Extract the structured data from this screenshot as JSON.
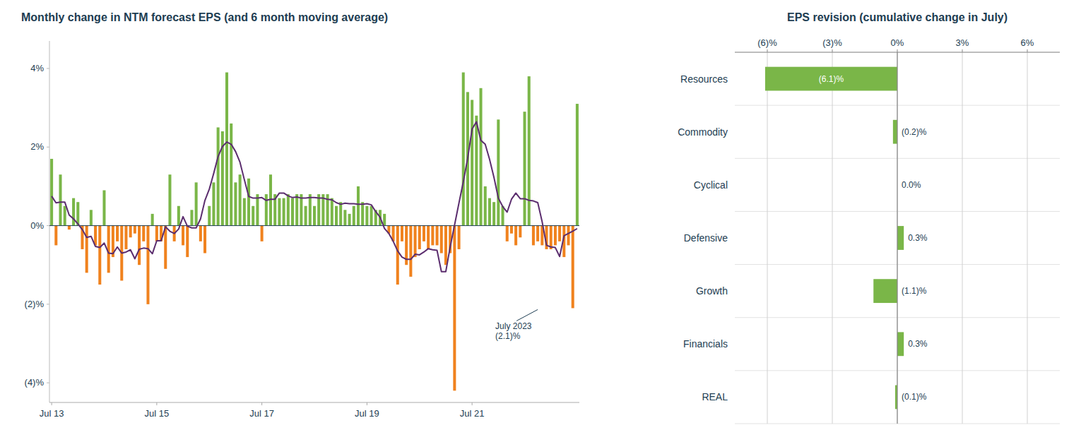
{
  "chart_data": [
    {
      "type": "bar",
      "title": "Monthly change in NTM forecast EPS (and 6 month moving average)",
      "categories": [
        "Jul 13",
        null,
        null,
        null,
        null,
        null,
        null,
        null,
        null,
        null,
        null,
        null,
        null,
        null,
        null,
        null,
        null,
        null,
        null,
        null,
        null,
        null,
        null,
        null,
        "Jul 15",
        null,
        null,
        null,
        null,
        null,
        null,
        null,
        null,
        null,
        null,
        null,
        null,
        null,
        null,
        null,
        null,
        null,
        null,
        null,
        null,
        null,
        null,
        null,
        "Jul 17",
        null,
        null,
        null,
        null,
        null,
        null,
        null,
        null,
        null,
        null,
        null,
        null,
        null,
        null,
        null,
        null,
        null,
        null,
        null,
        null,
        null,
        null,
        null,
        "Jul 19",
        null,
        null,
        null,
        null,
        null,
        null,
        null,
        null,
        null,
        null,
        null,
        null,
        null,
        null,
        null,
        null,
        null,
        null,
        null,
        null,
        null,
        null,
        null,
        "Jul 21",
        null,
        null,
        null,
        null,
        null,
        null,
        null,
        null,
        null,
        null,
        null,
        null,
        null,
        null,
        null,
        null,
        null,
        null,
        null,
        null,
        null,
        null,
        null,
        null
      ],
      "series": [
        {
          "type": "bar",
          "values": [
            1.7,
            -0.5,
            1.3,
            0.5,
            -0.1,
            0.7,
            0.6,
            -0.6,
            -1.2,
            0.4,
            -0.5,
            -1.5,
            0.9,
            -1.2,
            -0.8,
            -0.4,
            -1.4,
            -0.6,
            -0.3,
            -0.2,
            -1.0,
            -0.4,
            -2.0,
            0.3,
            -0.4,
            -0.4,
            -1.1,
            1.3,
            -0.4,
            0.5,
            -0.5,
            -0.8,
            0.4,
            1.1,
            -0.4,
            -0.7,
            0.5,
            1.1,
            2.5,
            2.4,
            3.9,
            2.6,
            1.1,
            1.3,
            0.7,
            1.2,
            0.5,
            0.8,
            -0.4,
            0.8,
            1.3,
            0.8,
            0.7,
            0.7,
            0.8,
            0.7,
            0.8,
            0.8,
            0.5,
            0.8,
            0.5,
            0.8,
            0.8,
            0.8,
            0.7,
            0.5,
            0.6,
            0.4,
            0.3,
            0.5,
            1.0,
            0.6,
            0.5,
            0.5,
            0.4,
            0.4,
            0.3,
            -0.2,
            -0.4,
            -1.5,
            -0.4,
            -1.0,
            -1.3,
            -0.8,
            -0.6,
            -0.4,
            -0.6,
            -0.5,
            -0.5,
            -0.7,
            -1.0,
            -0.7,
            -4.2,
            -0.6,
            3.9,
            3.4,
            3.2,
            2.8,
            3.5,
            1.0,
            0.7,
            0.6,
            2.7,
            0.5,
            -0.4,
            -0.2,
            -0.5,
            -0.3,
            2.9,
            3.8,
            -0.5,
            -0.4,
            -0.5,
            -0.6,
            -0.6,
            -0.5,
            -0.4,
            -0.8,
            -0.5,
            -2.1,
            3.1
          ],
          "colors": [
            "#7ab648",
            "#f0821e",
            "#7ab648",
            "#7ab648",
            "#f0821e",
            "#7ab648",
            "#7ab648",
            "#f0821e",
            "#f0821e",
            "#7ab648",
            "#f0821e",
            "#f0821e",
            "#7ab648",
            "#f0821e",
            "#f0821e",
            "#f0821e",
            "#f0821e",
            "#f0821e",
            "#f0821e",
            "#f0821e",
            "#f0821e",
            "#f0821e",
            "#f0821e",
            "#7ab648",
            "#f0821e",
            "#f0821e",
            "#f0821e",
            "#7ab648",
            "#f0821e",
            "#7ab648",
            "#f0821e",
            "#f0821e",
            "#7ab648",
            "#7ab648",
            "#f0821e",
            "#f0821e",
            "#7ab648",
            "#7ab648",
            "#7ab648",
            "#7ab648",
            "#7ab648",
            "#7ab648",
            "#7ab648",
            "#7ab648",
            "#7ab648",
            "#7ab648",
            "#7ab648",
            "#7ab648",
            "#f0821e",
            "#7ab648",
            "#7ab648",
            "#7ab648",
            "#7ab648",
            "#7ab648",
            "#7ab648",
            "#7ab648",
            "#7ab648",
            "#7ab648",
            "#7ab648",
            "#7ab648",
            "#7ab648",
            "#7ab648",
            "#7ab648",
            "#7ab648",
            "#7ab648",
            "#7ab648",
            "#7ab648",
            "#7ab648",
            "#7ab648",
            "#7ab648",
            "#7ab648",
            "#7ab648",
            "#7ab648",
            "#7ab648",
            "#7ab648",
            "#7ab648",
            "#7ab648",
            "#f0821e",
            "#f0821e",
            "#f0821e",
            "#f0821e",
            "#f0821e",
            "#f0821e",
            "#f0821e",
            "#f0821e",
            "#f0821e",
            "#f0821e",
            "#f0821e",
            "#f0821e",
            "#f0821e",
            "#f0821e",
            "#f0821e",
            "#f0821e",
            "#f0821e",
            "#7ab648",
            "#7ab648",
            "#7ab648",
            "#7ab648",
            "#7ab648",
            "#7ab648",
            "#7ab648",
            "#7ab648",
            "#7ab648",
            "#7ab648",
            "#f0821e",
            "#f0821e",
            "#f0821e",
            "#f0821e",
            "#7ab648",
            "#7ab648",
            "#f0821e",
            "#f0821e",
            "#f0821e",
            "#f0821e",
            "#f0821e",
            "#f0821e",
            "#f0821e",
            "#f0821e",
            "#f0821e",
            "#f0821e",
            "#7ab648"
          ]
        },
        {
          "type": "line",
          "color": "#5b2d6e",
          "values": [
            0.75,
            0.58,
            0.6,
            0.6,
            0.2714,
            0.1714,
            0.0429,
            -0.1,
            -0.3,
            -0.2714,
            -0.5286,
            -0.5571,
            -0.4429,
            -0.7,
            -0.7143,
            -0.5429,
            -0.7,
            -0.6714,
            -0.6143,
            -0.8429,
            -0.6,
            -0.5714,
            -0.5857,
            -0.7143,
            -0.3857,
            -0.3857,
            -0.0286,
            -0.1429,
            -0.2,
            -0.0857,
            0.2286,
            -0.0143,
            -0.0571,
            -0.0571,
            0.1714,
            0.6429,
            0.9286,
            1.3286,
            1.7571,
            2.0143,
            2.1286,
            2.0714,
            1.8857,
            1.6143,
            1.1714,
            0.7429,
            0.7,
            0.7,
            0.7143,
            0.6429,
            0.6714,
            0.6714,
            0.8286,
            0.8286,
            0.7571,
            0.7143,
            0.7286,
            0.7,
            0.7,
            0.7143,
            0.7143,
            0.7,
            0.7,
            0.6714,
            0.6571,
            0.5857,
            0.5429,
            0.5714,
            0.5571,
            0.5571,
            0.5429,
            0.5429,
            0.5571,
            0.5286,
            0.3571,
            0.2143,
            -0.0714,
            -0.2,
            -0.4,
            -0.6429,
            -0.8,
            -0.8571,
            -0.8571,
            -0.7286,
            -0.7429,
            -0.6714,
            -0.5857,
            -0.6143,
            -0.6286,
            -1.1714,
            -1.1714,
            -0.5429,
            0.0143,
            0.5714,
            1.1143,
            1.7143,
            2.4571,
            2.6429,
            2.1714,
            2.0714,
            1.6857,
            1.2286,
            0.7,
            0.4857,
            0.3429,
            0.6714,
            0.8286,
            0.6857,
            0.6857,
            0.6429,
            0.6286,
            0.5857,
            0.1,
            -0.5,
            -0.5429,
            -0.5571,
            -0.7857,
            -0.2571,
            -0.2,
            -0.14,
            -0.075
          ]
        }
      ],
      "ylim": [
        -4.5,
        4.7
      ],
      "yticks": [
        {
          "value": -4,
          "label": "(4)%"
        },
        {
          "value": -2,
          "label": "(2)%"
        },
        {
          "value": 0,
          "label": "0%"
        },
        {
          "value": 2,
          "label": "2%"
        },
        {
          "value": 4,
          "label": "4%"
        }
      ],
      "annotations": [
        {
          "text": "July 2023\n(2.1)%",
          "x": 111,
          "y": -2.1
        }
      ],
      "grid": false
    },
    {
      "type": "bar",
      "orientation": "horizontal",
      "title": "EPS revision (cumulative change in July)",
      "categories": [
        "Resources",
        "Commodity",
        "Cyclical",
        "Defensive",
        "Growth",
        "Financials",
        "REAL"
      ],
      "values": [
        -6.1,
        -0.2,
        0.0,
        0.3,
        -1.1,
        0.3,
        -0.1
      ],
      "value_labels": [
        "(6.1)%",
        "(0.2)%",
        "0.0%",
        "0.3%",
        "(1.1)%",
        "0.3%",
        "(0.1)%"
      ],
      "color": "#7ab648",
      "xlim": [
        -7.5,
        7.5
      ],
      "xticks": [
        {
          "value": -6,
          "label": "(6)%"
        },
        {
          "value": -3,
          "label": "(3)%"
        },
        {
          "value": 0,
          "label": "0%"
        },
        {
          "value": 3,
          "label": "3%"
        },
        {
          "value": 6,
          "label": "6%"
        }
      ],
      "grid": true,
      "data_labels": true
    }
  ]
}
